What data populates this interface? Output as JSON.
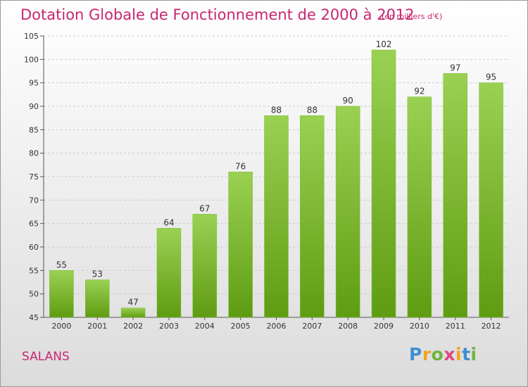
{
  "title": "Dotation Globale de Fonctionnement de 2000 à 2012",
  "unit_note": "(en milliers d'€)",
  "town": "SALANS",
  "brand": {
    "letters": [
      "P",
      "r",
      "o",
      "x",
      "i",
      "t",
      "i"
    ],
    "colors": [
      "#3d8fd1",
      "#f2a31f",
      "#6fb43f",
      "#e2477f",
      "#f2a31f",
      "#3d8fd1",
      "#6fb43f"
    ]
  },
  "colors": {
    "accent": "#c8266f",
    "bar_top": "#9ad153",
    "bar_bottom": "#5f9c12",
    "axis": "#555555",
    "grid": "#cccccc",
    "tick_text": "#333333"
  },
  "chart_data": {
    "type": "bar",
    "categories": [
      "2000",
      "2001",
      "2002",
      "2003",
      "2004",
      "2005",
      "2006",
      "2007",
      "2008",
      "2009",
      "2010",
      "2011",
      "2012"
    ],
    "values": [
      55,
      53,
      47,
      64,
      67,
      76,
      88,
      88,
      90,
      102,
      92,
      97,
      95
    ],
    "ylim": [
      45,
      105
    ],
    "yticks": [
      45,
      50,
      55,
      60,
      65,
      70,
      75,
      80,
      85,
      90,
      95,
      100,
      105
    ],
    "grid": "horizontal dashed",
    "legend": "none"
  }
}
